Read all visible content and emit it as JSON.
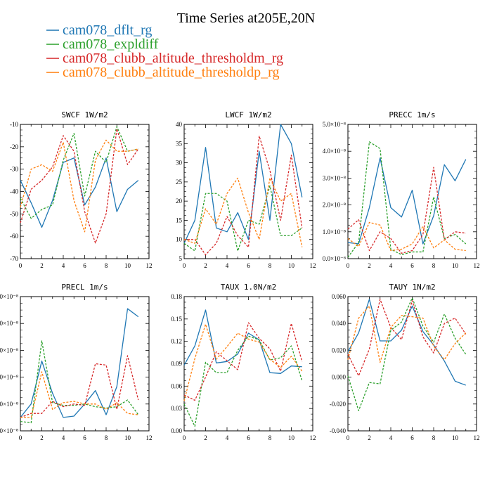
{
  "title": "Time Series at205E,20N",
  "legend": [
    {
      "name": "cam078_dflt_rg",
      "color": "#1f77b4",
      "dash": "solid"
    },
    {
      "name": "cam078_expldiff",
      "color": "#2ca02c",
      "dash": "dashed"
    },
    {
      "name": "cam078_clubb_altitude_thresholdm_rg",
      "color": "#d62728",
      "dash": "dashed"
    },
    {
      "name": "cam078_clubb_altitude_thresholdp_rg",
      "color": "#ff7f0e",
      "dash": "dashed"
    }
  ],
  "chart_data": [
    {
      "type": "line",
      "title": "SWCF  1W/m2",
      "x": [
        0,
        1,
        2,
        3,
        4,
        5,
        6,
        7,
        8,
        9,
        10,
        11
      ],
      "xlim": [
        0,
        12
      ],
      "xticks": [
        "0",
        "2",
        "4",
        "6",
        "8",
        "10",
        "12"
      ],
      "ylim": [
        -70,
        -10
      ],
      "yticks": [
        "-70",
        "-60",
        "-50",
        "-40",
        "-30",
        "-20",
        "-10"
      ],
      "series": [
        {
          "name": "cam078_dflt_rg",
          "values": [
            -35,
            -45,
            -56,
            -44,
            -27,
            -25,
            -46,
            -38,
            -25,
            -49,
            -39,
            -35
          ]
        },
        {
          "name": "cam078_expldiff",
          "values": [
            -43,
            -52,
            -48,
            -46,
            -26,
            -14,
            -42,
            -22,
            -27,
            -11,
            -22,
            -21
          ]
        },
        {
          "name": "cam078_clubb_altitude_thresholdm_rg",
          "values": [
            -54,
            -39,
            -35,
            -29,
            -15,
            -22,
            -49,
            -63,
            -50,
            -12,
            -28,
            -21
          ]
        },
        {
          "name": "cam078_clubb_altitude_thresholdp_rg",
          "values": [
            -47,
            -30,
            -28,
            -31,
            -18,
            -44,
            -58,
            -26,
            -17,
            -22,
            -22,
            -21
          ]
        }
      ]
    },
    {
      "type": "line",
      "title": "LWCF  1W/m2",
      "x": [
        0,
        1,
        2,
        3,
        4,
        5,
        6,
        7,
        8,
        9,
        10,
        11
      ],
      "xlim": [
        0,
        12
      ],
      "xticks": [
        "0",
        "2",
        "4",
        "6",
        "8",
        "10",
        "12"
      ],
      "ylim": [
        5,
        40
      ],
      "yticks": [
        "5",
        "10",
        "15",
        "20",
        "25",
        "30",
        "35",
        "40"
      ],
      "series": [
        {
          "name": "cam078_dflt_rg",
          "values": [
            9,
            15,
            34,
            13,
            12,
            17,
            10,
            33,
            15,
            40,
            35,
            21
          ]
        },
        {
          "name": "cam078_expldiff",
          "values": [
            9,
            7,
            22,
            22,
            20,
            7,
            15,
            14,
            24,
            11,
            11,
            13
          ]
        },
        {
          "name": "cam078_clubb_altitude_thresholdm_rg",
          "values": [
            10,
            10,
            6,
            9,
            16,
            11,
            8,
            37,
            28,
            15,
            32,
            13
          ]
        },
        {
          "name": "cam078_clubb_altitude_thresholdp_rg",
          "values": [
            10,
            9,
            18,
            14,
            22,
            26,
            17,
            10,
            26,
            20,
            22,
            8
          ]
        }
      ]
    },
    {
      "type": "line",
      "title": "PRECC  1m/s",
      "x": [
        0,
        1,
        2,
        3,
        4,
        5,
        6,
        7,
        8,
        9,
        10,
        11
      ],
      "xlim": [
        0,
        12
      ],
      "xticks": [
        "0",
        "2",
        "4",
        "6",
        "8",
        "10",
        "12"
      ],
      "ylim": [
        0,
        5e-08
      ],
      "yticks": [
        "0.0×10⁻⁸",
        "1.0×10⁻⁸",
        "2.0×10⁻⁸",
        "3.0×10⁻⁸",
        "4.0×10⁻⁸",
        "5.0×10⁻⁸"
      ],
      "series": [
        {
          "name": "cam078_dflt_rg",
          "values": [
            6e-09,
            5.5e-09,
            1.9e-08,
            3.75e-08,
            1.9e-08,
            1.55e-08,
            2.55e-08,
            5.5e-09,
            1.6e-08,
            3.5e-08,
            2.9e-08,
            3.7e-08
          ]
        },
        {
          "name": "cam078_expldiff",
          "values": [
            5e-10,
            6e-09,
            4.35e-08,
            4.1e-08,
            3.5e-09,
            1.5e-09,
            2.5e-09,
            2.5e-09,
            2.3e-08,
            7.5e-09,
            9e-09,
            5.5e-09
          ]
        },
        {
          "name": "cam078_clubb_altitude_thresholdm_rg",
          "values": [
            1.1e-08,
            1.45e-08,
            3e-09,
            1e-08,
            7.5e-09,
            2e-09,
            3e-09,
            9e-09,
            3.4e-08,
            7e-09,
            1e-08,
            9.5e-09
          ]
        },
        {
          "name": "cam078_clubb_altitude_thresholdp_rg",
          "values": [
            7.5e-09,
            4.5e-09,
            1.35e-08,
            1.25e-08,
            3e-09,
            3.5e-09,
            5.5e-09,
            1.2e-08,
            4e-09,
            7e-09,
            3.5e-09,
            3e-09
          ]
        }
      ]
    },
    {
      "type": "line",
      "title": "PRECL  1m/s",
      "x": [
        0,
        1,
        2,
        3,
        4,
        5,
        6,
        7,
        8,
        9,
        10,
        11
      ],
      "xlim": [
        0,
        12
      ],
      "xticks": [
        "0",
        "2",
        "4",
        "6",
        "8",
        "10",
        "12"
      ],
      "ylim": [
        0,
        1
      ],
      "yticks": [
        "0×10⁻⁸",
        "0×10⁻⁸",
        "0×10⁻⁸",
        "0×10⁻⁸",
        "0×10⁻⁸",
        "0×10⁻⁸"
      ],
      "series": [
        {
          "name": "cam078_dflt_rg",
          "values": [
            0.1,
            0.2,
            0.52,
            0.28,
            0.1,
            0.11,
            0.2,
            0.3,
            0.12,
            0.33,
            0.91,
            0.85
          ]
        },
        {
          "name": "cam078_expldiff",
          "values": [
            0.07,
            0.06,
            0.67,
            0.21,
            0.19,
            0.19,
            0.2,
            0.18,
            0.17,
            0.18,
            0.23,
            0.12
          ]
        },
        {
          "name": "cam078_clubb_altitude_thresholdm_rg",
          "values": [
            0.1,
            0.13,
            0.13,
            0.22,
            0.18,
            0.2,
            0.19,
            0.5,
            0.49,
            0.16,
            0.56,
            0.23
          ]
        },
        {
          "name": "cam078_clubb_altitude_thresholdp_rg",
          "values": [
            0.1,
            0.1,
            0.44,
            0.16,
            0.21,
            0.22,
            0.2,
            0.2,
            0.16,
            0.21,
            0.13,
            0.12
          ]
        }
      ]
    },
    {
      "type": "line",
      "title": "TAUX  1.0N/m2",
      "x": [
        0,
        1,
        2,
        3,
        4,
        5,
        6,
        7,
        8,
        9,
        10,
        11
      ],
      "xlim": [
        0,
        12
      ],
      "xticks": [
        "0",
        "2",
        "4",
        "6",
        "8",
        "10",
        "12"
      ],
      "ylim": [
        0,
        0.18
      ],
      "yticks": [
        "0.00",
        "0.03",
        "0.06",
        "0.09",
        "0.12",
        "0.15",
        "0.18"
      ],
      "series": [
        {
          "name": "cam078_dflt_rg",
          "values": [
            0.088,
            0.114,
            0.162,
            0.091,
            0.093,
            0.103,
            0.131,
            0.122,
            0.078,
            0.077,
            0.087,
            0.086
          ]
        },
        {
          "name": "cam078_expldiff",
          "values": [
            0.036,
            0.006,
            0.092,
            0.078,
            0.078,
            0.108,
            0.127,
            0.122,
            0.095,
            0.098,
            0.114,
            0.067
          ]
        },
        {
          "name": "cam078_clubb_altitude_thresholdm_rg",
          "values": [
            0.048,
            0.041,
            0.072,
            0.106,
            0.094,
            0.082,
            0.145,
            0.124,
            0.11,
            0.08,
            0.144,
            0.093
          ]
        },
        {
          "name": "cam078_clubb_altitude_thresholdp_rg",
          "values": [
            0.04,
            0.097,
            0.143,
            0.096,
            0.113,
            0.131,
            0.123,
            0.119,
            0.096,
            0.085,
            0.1,
            0.08
          ]
        }
      ]
    },
    {
      "type": "line",
      "title": "TAUY  1N/m2",
      "x": [
        0,
        1,
        2,
        3,
        4,
        5,
        6,
        7,
        8,
        9,
        10,
        11
      ],
      "xlim": [
        0,
        12
      ],
      "xticks": [
        "0",
        "2",
        "4",
        "6",
        "8",
        "10",
        "12"
      ],
      "ylim": [
        -0.04,
        0.06
      ],
      "yticks": [
        "-0.040",
        "-0.020",
        "0.000",
        "0.020",
        "0.040",
        "0.060"
      ],
      "series": [
        {
          "name": "cam078_dflt_rg",
          "values": [
            0.019,
            0.033,
            0.058,
            0.027,
            0.027,
            0.035,
            0.053,
            0.034,
            0.024,
            0.012,
            -0.003,
            -0.006
          ]
        },
        {
          "name": "cam078_expldiff",
          "values": [
            0.001,
            -0.025,
            -0.004,
            -0.005,
            0.035,
            0.041,
            0.059,
            0.038,
            0.026,
            0.047,
            0.029,
            0.017
          ]
        },
        {
          "name": "cam078_clubb_altitude_thresholdm_rg",
          "values": [
            0.017,
            0.001,
            0.021,
            0.058,
            0.037,
            0.028,
            0.057,
            0.03,
            0.018,
            0.04,
            0.044,
            0.032
          ]
        },
        {
          "name": "cam078_clubb_altitude_thresholdp_rg",
          "values": [
            0.013,
            0.044,
            0.053,
            0.011,
            0.037,
            0.046,
            0.045,
            0.044,
            0.023,
            0.013,
            0.025,
            0.033
          ]
        }
      ]
    }
  ]
}
